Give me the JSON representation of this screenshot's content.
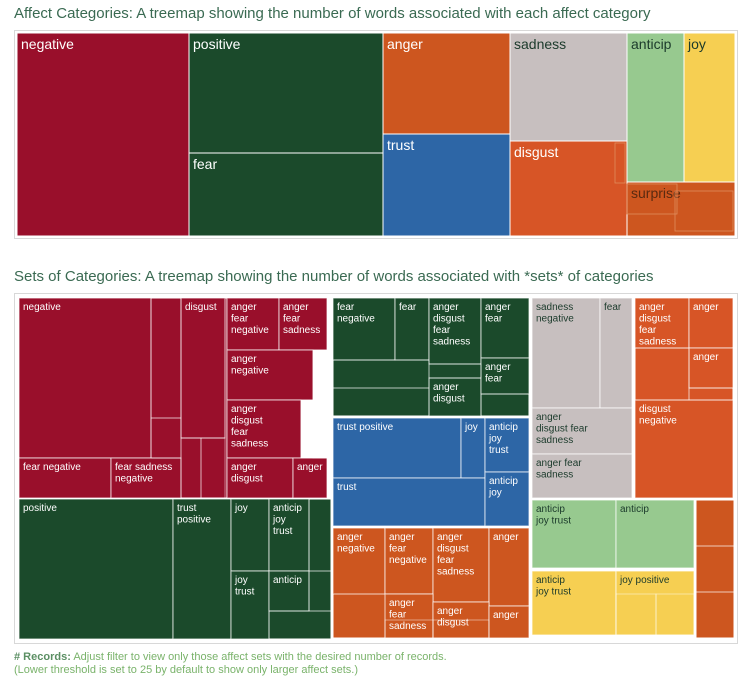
{
  "colors": {
    "negative": "#990f2b",
    "positive": "#1b4a2b",
    "anger": "#cd561f",
    "sadness": "#c7bfbf",
    "anticip": "#97c98f",
    "joy": "#f6cf52",
    "trust": "#2d66a6",
    "disgust": "#d75526",
    "surprise": "#cd561f",
    "fear": "#1b4a2b"
  },
  "affect": {
    "title": "Affect Categories: A treemap showing the number of words associated with each affect category",
    "chart_data": {
      "type": "treemap",
      "items": [
        {
          "name": "negative",
          "value": 3324
        },
        {
          "name": "positive",
          "value": 2312
        },
        {
          "name": "fear",
          "value": 1476
        },
        {
          "name": "anger",
          "value": 1247
        },
        {
          "name": "trust",
          "value": 1231
        },
        {
          "name": "sadness",
          "value": 1191
        },
        {
          "name": "disgust",
          "value": 1058
        },
        {
          "name": "anticip",
          "value": 839
        },
        {
          "name": "joy",
          "value": 689
        },
        {
          "name": "surprise",
          "value": 534
        }
      ]
    }
  },
  "sets": {
    "title": "Sets of Categories: A treemap showing the number of words associated with *sets* of categories",
    "chart_data": {
      "type": "treemap",
      "groups": [
        {
          "color": "negative",
          "cells": [
            {
              "label": "negative",
              "value": 1720
            },
            {
              "label": "disgust",
              "value": 190
            },
            {
              "label": "fear negative",
              "value": 300
            },
            {
              "label": "fear sadness negative",
              "value": 280
            },
            {
              "label": "anger fear negative",
              "value": 210
            },
            {
              "label": "anger fear sadness",
              "value": 190
            },
            {
              "label": "anger negative",
              "value": 210
            },
            {
              "label": "anger disgust fear sadness",
              "value": 200
            },
            {
              "label": "anger disgust",
              "value": 170
            },
            {
              "label": "anger",
              "value": 90
            }
          ]
        },
        {
          "color": "positive",
          "cells": [
            {
              "label": "positive",
              "value": 1150
            },
            {
              "label": "trust positive",
              "value": 290
            },
            {
              "label": "joy",
              "value": 190
            },
            {
              "label": "anticip joy trust",
              "value": 150
            },
            {
              "label": "joy trust",
              "value": 130
            },
            {
              "label": "anticip",
              "value": 110
            }
          ]
        },
        {
          "color": "fear",
          "cells": [
            {
              "label": "fear negative",
              "value": 250
            },
            {
              "label": "fear",
              "value": 170
            },
            {
              "label": "anger disgust fear sadness",
              "value": 160
            },
            {
              "label": "anger fear",
              "value": 130
            },
            {
              "label": "anger disgust",
              "value": 100
            },
            {
              "label": "anger fear",
              "value": 90
            }
          ]
        },
        {
          "color": "trust",
          "cells": [
            {
              "label": "trust positive",
              "value": 230
            },
            {
              "label": "joy",
              "value": 60
            },
            {
              "label": "anticip joy trust",
              "value": 120
            },
            {
              "label": "trust",
              "value": 280
            },
            {
              "label": "anticip joy",
              "value": 110
            }
          ]
        },
        {
          "color": "anger",
          "cells": [
            {
              "label": "anger negative",
              "value": 130
            },
            {
              "label": "anger fear negative",
              "value": 130
            },
            {
              "label": "anger disgust fear sadness",
              "value": 120
            },
            {
              "label": "anger",
              "value": 100
            },
            {
              "label": "anger fear sadness",
              "value": 80
            },
            {
              "label": "anger disgust",
              "value": 80
            },
            {
              "label": "anger",
              "value": 60
            }
          ]
        },
        {
          "color": "sadness",
          "cells": [
            {
              "label": "sadness negative",
              "value": 300
            },
            {
              "label": "fear",
              "value": 80
            },
            {
              "label": "anger disgust fear sadness",
              "value": 130
            },
            {
              "label": "anger fear sadness",
              "value": 100
            }
          ]
        },
        {
          "color": "anticip",
          "cells": [
            {
              "label": "anticip joy trust",
              "value": 140
            },
            {
              "label": "anticip",
              "value": 180
            }
          ]
        },
        {
          "color": "joy",
          "cells": [
            {
              "label": "anticip joy trust",
              "value": 150
            },
            {
              "label": "joy positive",
              "value": 170
            }
          ]
        },
        {
          "color": "disgust",
          "cells": [
            {
              "label": "anger disgust fear sadness",
              "value": 130
            },
            {
              "label": "anger",
              "value": 60
            },
            {
              "label": "anger",
              "value": 60
            },
            {
              "label": "disgust negative",
              "value": 200
            }
          ]
        },
        {
          "color": "surprise",
          "cells": []
        }
      ]
    }
  },
  "footer": {
    "label": "# Records:",
    "text": "Adjust filter to view only those affect sets with the desired number of records.",
    "note": "(Lower threshold is set to 25 by default to show only larger affect sets.)"
  }
}
